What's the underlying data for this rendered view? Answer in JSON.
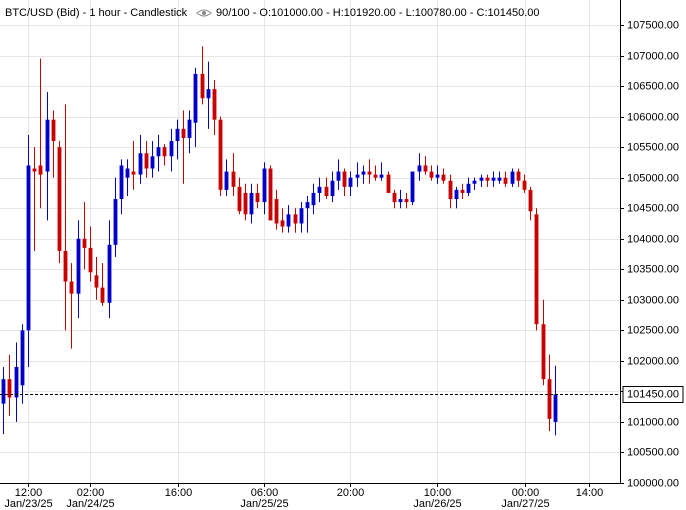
{
  "chart_data": {
    "type": "candlestick",
    "title": "BTC/USD (Bid) - 1 hour - Candlestick",
    "info": "90/100 - O:101000.00 - H:101920.00 - L:100780.00 - C:101450.00",
    "up_color": "#0000c8",
    "down_color": "#c80000",
    "grid": true,
    "open": [
      101300,
      101700,
      101400,
      101600,
      102500,
      105150,
      105200,
      105100,
      105950,
      105500,
      103800,
      103300,
      103100,
      104000,
      103850,
      103400,
      103200,
      102950,
      103900,
      104650,
      105000,
      105100,
      105050,
      105400,
      105150,
      105350,
      105500,
      105350,
      105600,
      105800,
      105650,
      105900,
      106700,
      106300,
      106450,
      105950,
      104800,
      105100,
      104850,
      104750,
      104400,
      104750,
      104600,
      105150,
      104650,
      104300,
      104200,
      104400,
      104250,
      104500,
      104550,
      104750,
      104850,
      104700,
      104950,
      105100,
      104850,
      105000,
      105050,
      105100,
      105050,
      105000,
      105050,
      104750,
      104600,
      104650,
      104600,
      105100,
      105200,
      105100,
      105000,
      105050,
      104950,
      104650,
      104800,
      104750,
      104900,
      104950,
      105000,
      104950,
      104950,
      105000,
      104900,
      105100,
      104950,
      104800,
      104400,
      102600,
      101700,
      101000
    ],
    "high": [
      101900,
      102100,
      102300,
      102600,
      105700,
      105500,
      106950,
      106400,
      106100,
      105600,
      106200,
      103600,
      104300,
      104600,
      104200,
      103700,
      103600,
      104300,
      105000,
      105300,
      105300,
      105600,
      105700,
      105600,
      105600,
      105700,
      105550,
      105800,
      105950,
      106100,
      106100,
      106800,
      107150,
      106900,
      106600,
      106000,
      105300,
      105400,
      105000,
      104900,
      104900,
      104900,
      105250,
      105200,
      104800,
      104500,
      104550,
      104500,
      104600,
      104700,
      104900,
      105000,
      105000,
      105100,
      105300,
      105150,
      105100,
      105250,
      105200,
      105300,
      105200,
      105250,
      105100,
      104800,
      104800,
      104750,
      105100,
      105400,
      105350,
      105200,
      105200,
      105150,
      105050,
      104850,
      104900,
      105000,
      105000,
      105050,
      105050,
      105100,
      105100,
      105100,
      105150,
      105150,
      105050,
      104850,
      104500,
      103000,
      102100,
      101920
    ],
    "low": [
      100800,
      101100,
      101000,
      101300,
      101900,
      103800,
      104500,
      104300,
      105000,
      103600,
      102500,
      102200,
      102700,
      103500,
      103300,
      103000,
      102900,
      102700,
      103700,
      104400,
      104700,
      104800,
      104900,
      105000,
      105000,
      105100,
      105200,
      105100,
      105300,
      104900,
      105400,
      105500,
      106200,
      105800,
      105700,
      104700,
      104700,
      104700,
      104400,
      104300,
      104250,
      104500,
      104400,
      104300,
      104150,
      104100,
      104100,
      104100,
      104100,
      104100,
      104400,
      104600,
      104650,
      104600,
      104800,
      104700,
      104700,
      104850,
      104900,
      104900,
      104950,
      104950,
      104750,
      104500,
      104500,
      104500,
      104550,
      104950,
      105050,
      104950,
      104900,
      104900,
      104500,
      104500,
      104650,
      104700,
      104800,
      104850,
      104850,
      104850,
      104900,
      104850,
      104850,
      104850,
      104750,
      104300,
      102500,
      101600,
      100850,
      100780
    ],
    "close": [
      101700,
      101400,
      101900,
      102500,
      105200,
      105100,
      105050,
      105950,
      105600,
      103800,
      103300,
      103100,
      104000,
      103850,
      103450,
      103200,
      102950,
      103900,
      104650,
      105200,
      105150,
      105050,
      105400,
      105150,
      105350,
      105500,
      105350,
      105600,
      105800,
      105650,
      105950,
      106700,
      106300,
      106450,
      105950,
      104800,
      105100,
      104850,
      104450,
      104400,
      104750,
      104600,
      105150,
      104300,
      104250,
      104200,
      104400,
      104250,
      104500,
      104600,
      104750,
      104850,
      104700,
      104950,
      105100,
      104850,
      105000,
      105050,
      105100,
      105050,
      105000,
      105050,
      104750,
      104600,
      104650,
      104600,
      105100,
      105200,
      105100,
      105000,
      105050,
      104950,
      104650,
      104800,
      104750,
      104900,
      104950,
      105000,
      104950,
      105000,
      105000,
      104900,
      105100,
      104950,
      104800,
      104450,
      102600,
      101700,
      101050,
      101450
    ],
    "current_price": {
      "value": 101450,
      "label": "101450.00"
    },
    "ylim": [
      100000,
      107500
    ],
    "yticks": [
      {
        "value": 100000,
        "label": "100000.00"
      },
      {
        "value": 100500,
        "label": "100500.00"
      },
      {
        "value": 101000,
        "label": "101000.00"
      },
      {
        "value": 101500,
        "label": "101500.00"
      },
      {
        "value": 102000,
        "label": "102000.00"
      },
      {
        "value": 102500,
        "label": "102500.00"
      },
      {
        "value": 103000,
        "label": "103000.00"
      },
      {
        "value": 103500,
        "label": "103500.00"
      },
      {
        "value": 104000,
        "label": "104000.00"
      },
      {
        "value": 104500,
        "label": "104500.00"
      },
      {
        "value": 105000,
        "label": "105000.00"
      },
      {
        "value": 105500,
        "label": "105500.00"
      },
      {
        "value": 106000,
        "label": "106000.00"
      },
      {
        "value": 106500,
        "label": "106500.00"
      },
      {
        "value": 107000,
        "label": "107000.00"
      },
      {
        "value": 107500,
        "label": "107500.00"
      }
    ],
    "xlim": [
      -0.5,
      99.5
    ],
    "xticks": [
      {
        "value": 4,
        "label": "12:00",
        "date": "Jan/23/25"
      },
      {
        "value": 14,
        "label": "02:00",
        "date": "Jan/24/25"
      },
      {
        "value": 28.2,
        "label": "16:00"
      },
      {
        "value": 42,
        "label": "06:00",
        "date": "Jan/25/25"
      },
      {
        "value": 55.9,
        "label": "20:00"
      },
      {
        "value": 70,
        "label": "10:00",
        "date": "Jan/26/25"
      },
      {
        "value": 84.2,
        "label": "00:00",
        "date": "Jan/27/25"
      },
      {
        "value": 94.5,
        "label": "14:00"
      }
    ]
  }
}
